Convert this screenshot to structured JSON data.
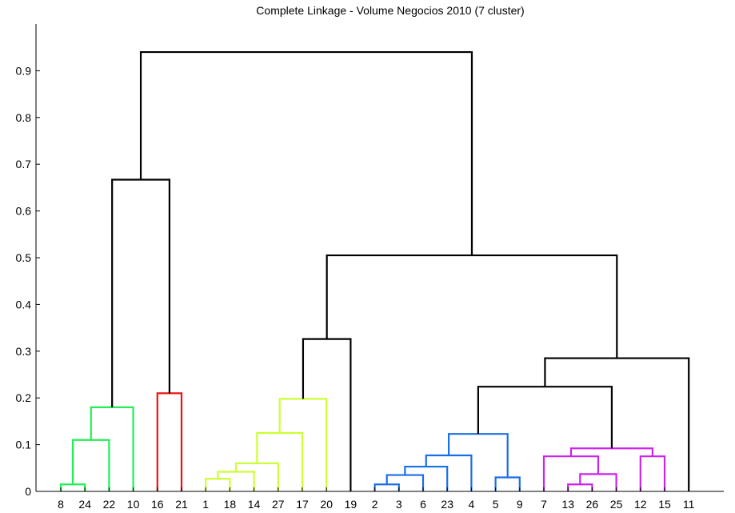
{
  "chart_data": {
    "type": "dendrogram",
    "title": "Complete Linkage -  Volume Negocios 2010 (7 cluster)",
    "xlabel": "",
    "ylabel": "",
    "ylim": [
      0,
      1.0
    ],
    "yticks": [
      "0",
      "0.1",
      "0.2",
      "0.3",
      "0.4",
      "0.5",
      "0.6",
      "0.7",
      "0.8",
      "0.9"
    ],
    "leaf_order": [
      "8",
      "24",
      "22",
      "10",
      "16",
      "21",
      "1",
      "18",
      "14",
      "27",
      "17",
      "20",
      "19",
      "2",
      "3",
      "6",
      "23",
      "4",
      "5",
      "9",
      "7",
      "13",
      "26",
      "25",
      "12",
      "15",
      "11"
    ],
    "colors": {
      "green": "#22ee55",
      "red": "#ee1111",
      "yellowgreen": "#ccff33",
      "blue": "#1a6ee8",
      "magenta": "#cc22ee",
      "black": "#000000"
    },
    "merges": [
      {
        "a": "8",
        "b": "24",
        "height": 0.015,
        "color": "green"
      },
      {
        "a": "8,24",
        "b": "22",
        "height": 0.11,
        "color": "green"
      },
      {
        "a": "8,24,22",
        "b": "10",
        "height": 0.18,
        "color": "green"
      },
      {
        "a": "16",
        "b": "21",
        "height": 0.21,
        "color": "red"
      },
      {
        "a": "1",
        "b": "18",
        "height": 0.027,
        "color": "yellowgreen"
      },
      {
        "a": "1,18",
        "b": "14",
        "height": 0.042,
        "color": "yellowgreen"
      },
      {
        "a": "1,18,14",
        "b": "27",
        "height": 0.06,
        "color": "yellowgreen"
      },
      {
        "a": "1,18,14,27",
        "b": "17",
        "height": 0.125,
        "color": "yellowgreen"
      },
      {
        "a": "1,18,14,27,17",
        "b": "20",
        "height": 0.198,
        "color": "yellowgreen"
      },
      {
        "a": "2",
        "b": "3",
        "height": 0.015,
        "color": "blue"
      },
      {
        "a": "2,3",
        "b": "6",
        "height": 0.035,
        "color": "blue"
      },
      {
        "a": "2,3,6",
        "b": "23",
        "height": 0.053,
        "color": "blue"
      },
      {
        "a": "2,3,6,23",
        "b": "4",
        "height": 0.077,
        "color": "blue"
      },
      {
        "a": "5",
        "b": "9",
        "height": 0.03,
        "color": "blue"
      },
      {
        "a": "2,3,6,23,4",
        "b": "5,9",
        "height": 0.123,
        "color": "blue"
      },
      {
        "a": "13",
        "b": "26",
        "height": 0.015,
        "color": "magenta"
      },
      {
        "a": "13,26",
        "b": "25",
        "height": 0.037,
        "color": "magenta"
      },
      {
        "a": "7",
        "b": "13,26,25",
        "height": 0.075,
        "color": "magenta"
      },
      {
        "a": "12",
        "b": "15",
        "height": 0.075,
        "color": "magenta"
      },
      {
        "a": "7,13,26,25",
        "b": "12,15",
        "height": 0.092,
        "color": "magenta"
      },
      {
        "a": "1,18,14,27,17,20",
        "b": "19",
        "height": 0.326,
        "color": "black"
      },
      {
        "a": "2,3,6,23,4,5,9",
        "b": "7,13,26,25,12,15",
        "height": 0.224,
        "color": "black"
      },
      {
        "a": "2,3,6,23,4,5,9,7,13,26,25,12,15",
        "b": "11",
        "height": 0.285,
        "color": "black"
      },
      {
        "a": "1,18,14,27,17,20,19",
        "b": "2,3,6,23,4,5,9,7,13,26,25,12,15,11",
        "height": 0.505,
        "color": "black"
      },
      {
        "a": "8,24,22,10",
        "b": "16,21",
        "height": 0.667,
        "color": "black"
      },
      {
        "a": "8,24,22,10,16,21",
        "b": "1,18,14,27,17,20,19,2,3,6,23,4,5,9,7,13,26,25,12,15,11",
        "height": 0.94,
        "color": "black"
      }
    ]
  }
}
